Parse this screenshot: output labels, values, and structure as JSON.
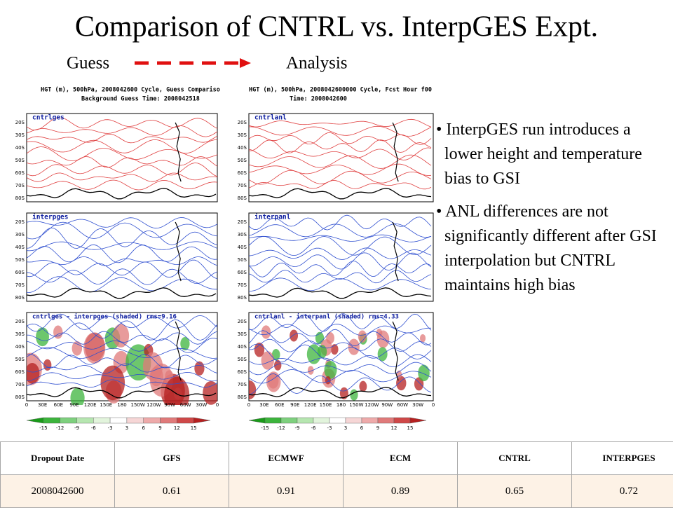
{
  "title": "Comparison of CNTRL vs. InterpGES Expt.",
  "flow": {
    "from": "Guess",
    "to": "Analysis"
  },
  "panels": [
    {
      "header": [
        "HGT (m), 500hPa, 2008042600 Cycle, Guess Compariso",
        "Background Guess Time: 2008042518"
      ],
      "labels": [
        "cntrlges",
        "interpges",
        "cntrlges - interpges (shaded) rms=9.16"
      ]
    },
    {
      "header": [
        "HGT (m), 500hPa, 2008042600000 Cycle, Fcst Hour f00",
        "Time: 2008042600"
      ],
      "labels": [
        "cntrlanl",
        "interpanl",
        "cntrlanl - interpanl (shaded) rms=4.33"
      ]
    }
  ],
  "lat_ticks": [
    "20S",
    "30S",
    "40S",
    "50S",
    "60S",
    "70S",
    "80S"
  ],
  "lon_ticks": [
    "0",
    "30E",
    "60E",
    "90E",
    "120E",
    "150E",
    "180",
    "150W",
    "120W",
    "90W",
    "60W",
    "30W",
    "0"
  ],
  "colorbar_ticks": [
    "-15",
    "-12",
    "-9",
    "-6",
    "-3",
    "3",
    "6",
    "9",
    "12",
    "15"
  ],
  "bullets": [
    "InterpGES run introduces a lower height and temperature bias to GSI",
    "ANL differences are not significantly different after GSI interpolation but CNTRL maintains high bias"
  ],
  "table": {
    "header": [
      "Dropout Date",
      "GFS",
      "ECMWF",
      "ECM",
      "CNTRL",
      "INTERPGES"
    ],
    "rows": [
      [
        "2008042600",
        0.61,
        0.91,
        0.89,
        0.65,
        0.72
      ]
    ]
  }
}
